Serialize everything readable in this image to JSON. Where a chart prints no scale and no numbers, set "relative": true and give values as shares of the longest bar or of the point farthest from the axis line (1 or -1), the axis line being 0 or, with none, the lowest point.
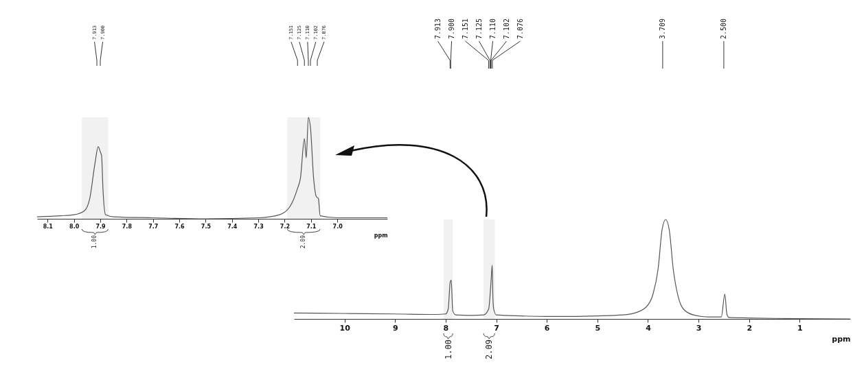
{
  "chart_data": [
    {
      "type": "line",
      "relative": true,
      "xlabel": "ppm",
      "xlim": [
        8.14,
        6.81
      ],
      "xticks": [
        8.1,
        {
          "value": 8,
          "label": "8.0"
        },
        7.9,
        7.8,
        7.7,
        7.6,
        7.5,
        7.4,
        7.3,
        7.2,
        7.1,
        {
          "value": 7,
          "label": "7.0"
        }
      ],
      "tick_labels": "x",
      "grid": false,
      "x": [
        8.14,
        8.05,
        8.0,
        7.96,
        7.94,
        7.92,
        7.908,
        7.9,
        7.895,
        7.89,
        7.88,
        7.85,
        7.7,
        7.5,
        7.3,
        7.22,
        7.18,
        7.151,
        7.14,
        7.125,
        7.118,
        7.11,
        7.102,
        7.09,
        7.08,
        7.072,
        7.065,
        7.0,
        6.81
      ],
      "series": [
        {
          "color": "#555555",
          "values": [
            0.02,
            0.03,
            0.04,
            0.08,
            0.2,
            0.55,
            0.71,
            0.66,
            0.62,
            0.3,
            0.04,
            0.02,
            0.01,
            0,
            0.01,
            0.04,
            0.12,
            0.3,
            0.4,
            0.79,
            0.6,
            1.0,
            0.9,
            0.4,
            0.22,
            0.2,
            0.03,
            0.01,
            0.01
          ]
        }
      ],
      "annotations": [
        {
          "text": "7.913",
          "x": 7.913
        },
        {
          "text": "7.900",
          "x": 7.9
        },
        {
          "text": "7.151",
          "x": 7.151
        },
        {
          "text": "7.125",
          "x": 7.125
        },
        {
          "text": "7.110",
          "x": 7.11
        },
        {
          "text": "7.102",
          "x": 7.102
        },
        {
          "text": "7.076",
          "x": 7.076
        }
      ],
      "bands": [
        {
          "axis": "x",
          "from": 7.97,
          "to": 7.87,
          "label": "1.00"
        },
        {
          "axis": "x",
          "from": 7.19,
          "to": 7.065,
          "label": "2.09"
        }
      ]
    },
    {
      "type": "line",
      "relative": true,
      "xlabel": "ppm",
      "xlim": [
        11,
        0
      ],
      "xticks": [
        10,
        9,
        8,
        7,
        6,
        5,
        4,
        3,
        2,
        1
      ],
      "tick_labels": "x",
      "grid": false,
      "x": [
        11,
        10,
        9,
        8.2,
        8.0,
        7.95,
        7.91,
        7.89,
        7.86,
        7.8,
        7.5,
        7.25,
        7.15,
        7.1,
        7.08,
        7.065,
        7.05,
        7.0,
        6.5,
        6,
        5.5,
        5,
        4.5,
        4.2,
        4.0,
        3.9,
        3.8,
        3.72,
        3.65,
        3.58,
        3.5,
        3.4,
        3.3,
        3.1,
        2.8,
        2.55,
        2.48,
        2.44,
        2.4,
        2.0,
        1.5,
        1,
        0
      ],
      "series": [
        {
          "color": "#555555",
          "values": [
            0.06,
            0.055,
            0.05,
            0.045,
            0.05,
            0.1,
            0.37,
            0.39,
            0.08,
            0.04,
            0.035,
            0.04,
            0.1,
            0.4,
            0.54,
            0.2,
            0.1,
            0.04,
            0.03,
            0.025,
            0.025,
            0.03,
            0.04,
            0.07,
            0.14,
            0.25,
            0.5,
            0.9,
            1.0,
            0.9,
            0.5,
            0.22,
            0.1,
            0.04,
            0.02,
            0.02,
            0.25,
            0.05,
            0.015,
            0.01,
            0.005,
            0.002,
            0
          ]
        }
      ],
      "annotations": [
        {
          "text": "7.913",
          "x": 7.913
        },
        {
          "text": "7.900",
          "x": 7.9
        },
        {
          "text": "7.151",
          "x": 7.151
        },
        {
          "text": "7.125",
          "x": 7.125
        },
        {
          "text": "7.110",
          "x": 7.11
        },
        {
          "text": "7.102",
          "x": 7.102
        },
        {
          "text": "7.076",
          "x": 7.076
        },
        {
          "text": "3.709",
          "x": 3.709
        },
        {
          "text": "2.500",
          "x": 2.5
        }
      ],
      "bands": [
        {
          "axis": "x",
          "from": 8.04,
          "to": 7.86,
          "label": "1.00"
        },
        {
          "axis": "x",
          "from": 7.25,
          "to": 7.03,
          "label": "2.09"
        }
      ]
    }
  ]
}
